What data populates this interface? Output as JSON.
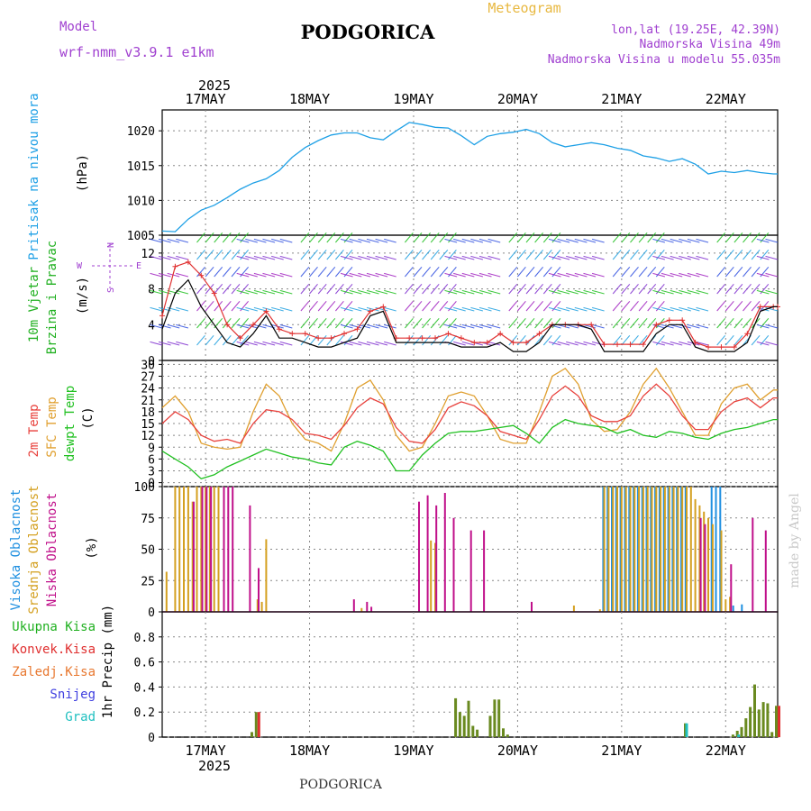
{
  "header": {
    "model_label": "Model",
    "model_name": "wrf-nmm_v3.9.1  e1km",
    "station": "PODGORICA",
    "meteogram": "Meteogram",
    "coords": "lon,lat (19.25E, 42.39N)",
    "elevation": "Nadmorska Visina 49m",
    "model_elevation": "Nadmorska Visina u modelu 55.035m",
    "footer_station": "PODGORICA",
    "watermark": "made by Angel"
  },
  "colors": {
    "pressure": "#1ea0e6",
    "temp": "#e8413c",
    "sfc_temp": "#e0a030",
    "dewpoint": "#20c020",
    "high_cloud": "#2090e0",
    "mid_cloud": "#d4a020",
    "low_cloud": "#c0108a",
    "total_precip": "#6a8a20",
    "conv_precip": "#e03030",
    "freezing": "#e87830",
    "snow": "#4040e0",
    "hail": "#20c0c0",
    "wind_mean": "#000000",
    "wind_gust": "#e03030",
    "purple": "#a040d0",
    "green": "#20b020"
  },
  "chart_data": [
    {
      "type": "line",
      "panel": "pressure",
      "ylabel_lines": [
        "Pritisak na nivou mora",
        "(hPa)"
      ],
      "ylim": [
        1005,
        1023
      ],
      "yticks": [
        1005,
        1010,
        1015,
        1020
      ],
      "x_start": "2025-05-16 14:00",
      "x_end": "2025-05-22 12:00",
      "year_label": "2025",
      "day_labels": [
        "17MAY",
        "18MAY",
        "19MAY",
        "20MAY",
        "21MAY",
        "22MAY"
      ],
      "grid": true,
      "series": [
        {
          "x": [
            0,
            3,
            6,
            9,
            12,
            15,
            18,
            21,
            24,
            27,
            30,
            33,
            36,
            39,
            42,
            45,
            48,
            51,
            54,
            57,
            60,
            63,
            66,
            69,
            72,
            75,
            78,
            81,
            84,
            87,
            90,
            93,
            96,
            99,
            102,
            105,
            108,
            111,
            114,
            117,
            120,
            123,
            126,
            129,
            132,
            135,
            138,
            141,
            142
          ],
          "values": [
            1005.6,
            1005.5,
            1007.3,
            1008.6,
            1009.3,
            1010.4,
            1011.6,
            1012.5,
            1013.1,
            1014.3,
            1016.2,
            1017.6,
            1018.6,
            1019.4,
            1019.7,
            1019.7,
            1019.0,
            1018.7,
            1020.0,
            1021.2,
            1020.9,
            1020.5,
            1020.4,
            1019.3,
            1018.0,
            1019.2,
            1019.6,
            1019.8,
            1020.2,
            1019.6,
            1018.3,
            1017.7,
            1018.0,
            1018.3,
            1018.0,
            1017.5,
            1017.2,
            1016.4,
            1016.1,
            1015.6,
            1016.0,
            1015.2,
            1013.8,
            1014.2,
            1014.0,
            1014.3,
            1014.0,
            1013.8,
            1013.8
          ]
        }
      ]
    },
    {
      "type": "line",
      "panel": "wind",
      "ylabel_lines": [
        "10m Vjetar",
        "Brzina i Pravac",
        "(m/s)"
      ],
      "compass": [
        "N",
        "E",
        "S",
        "W"
      ],
      "ylim": [
        0,
        14
      ],
      "yticks": [
        0,
        4,
        8,
        12
      ],
      "grid": true,
      "series": [
        {
          "name": "mean",
          "x": [
            0,
            3,
            6,
            9,
            12,
            15,
            18,
            21,
            24,
            27,
            30,
            33,
            36,
            39,
            42,
            45,
            48,
            51,
            54,
            57,
            60,
            63,
            66,
            69,
            72,
            75,
            78,
            81,
            84,
            87,
            90,
            93,
            96,
            99,
            102,
            105,
            108,
            111,
            114,
            117,
            120,
            123,
            126,
            129,
            132,
            135,
            138,
            141,
            142
          ],
          "values": [
            3.5,
            7.5,
            9.0,
            6.0,
            4.0,
            2.0,
            1.5,
            3.0,
            5.0,
            2.5,
            2.5,
            2.0,
            1.5,
            1.5,
            2.0,
            2.5,
            5.0,
            5.5,
            2.0,
            2.0,
            2.0,
            2.0,
            2.0,
            1.5,
            1.5,
            1.5,
            2.0,
            1.0,
            1.0,
            2.0,
            4.0,
            4.0,
            4.0,
            3.5,
            1.0,
            1.0,
            1.0,
            1.0,
            3.0,
            4.0,
            4.0,
            1.5,
            1.0,
            1.0,
            1.0,
            2.0,
            5.5,
            6.0,
            6.0
          ]
        },
        {
          "name": "gust",
          "x": [
            0,
            3,
            6,
            9,
            12,
            15,
            18,
            21,
            24,
            27,
            30,
            33,
            36,
            39,
            42,
            45,
            48,
            51,
            54,
            57,
            60,
            63,
            66,
            69,
            72,
            75,
            78,
            81,
            84,
            87,
            90,
            93,
            96,
            99,
            102,
            105,
            108,
            111,
            114,
            117,
            120,
            123,
            126,
            129,
            132,
            135,
            138,
            141,
            142
          ],
          "values": [
            5.0,
            10.5,
            11.0,
            9.5,
            7.5,
            4.0,
            2.5,
            4.0,
            5.5,
            3.5,
            3.0,
            3.0,
            2.5,
            2.5,
            3.0,
            3.5,
            5.5,
            6.0,
            2.5,
            2.5,
            2.5,
            2.5,
            3.0,
            2.5,
            2.0,
            2.0,
            3.0,
            2.0,
            2.0,
            3.0,
            4.0,
            4.0,
            4.0,
            4.0,
            1.8,
            1.8,
            1.8,
            1.8,
            4.0,
            4.5,
            4.5,
            2.0,
            1.5,
            1.5,
            1.5,
            3.0,
            6.0,
            6.0,
            6.0
          ]
        }
      ]
    },
    {
      "type": "line",
      "panel": "temperature",
      "ylabel_lines": [
        "2m Temp",
        "SFC Temp",
        "dewpt Temp",
        "(C)"
      ],
      "ylim": [
        -1,
        31
      ],
      "yticks": [
        0,
        3,
        6,
        9,
        12,
        15,
        18,
        21,
        24,
        27,
        30
      ],
      "grid": true,
      "series": [
        {
          "name": "2m Temp",
          "x": [
            0,
            3,
            6,
            9,
            12,
            15,
            18,
            21,
            24,
            27,
            30,
            33,
            36,
            39,
            42,
            45,
            48,
            51,
            54,
            57,
            60,
            63,
            66,
            69,
            72,
            75,
            78,
            81,
            84,
            87,
            90,
            93,
            96,
            99,
            102,
            105,
            108,
            111,
            114,
            117,
            120,
            123,
            126,
            129,
            132,
            135,
            138,
            141,
            142
          ],
          "values": [
            15.0,
            18.0,
            16.0,
            12.0,
            10.5,
            11.0,
            10.0,
            15.0,
            18.5,
            18.0,
            16.0,
            12.5,
            12.0,
            11.0,
            14.5,
            19.0,
            21.5,
            20.0,
            14.0,
            10.5,
            10.0,
            13.5,
            19.0,
            20.5,
            19.5,
            17.0,
            13.0,
            12.0,
            11.0,
            16.0,
            22.0,
            24.5,
            22.0,
            17.0,
            15.5,
            15.5,
            17.0,
            22.0,
            25.0,
            22.0,
            17.0,
            13.5,
            13.5,
            18.0,
            20.5,
            21.5,
            19.0,
            21.5,
            21.5
          ]
        },
        {
          "name": "SFC Temp",
          "x": [
            0,
            3,
            6,
            9,
            12,
            15,
            18,
            21,
            24,
            27,
            30,
            33,
            36,
            39,
            42,
            45,
            48,
            51,
            54,
            57,
            60,
            63,
            66,
            69,
            72,
            75,
            78,
            81,
            84,
            87,
            90,
            93,
            96,
            99,
            102,
            105,
            108,
            111,
            114,
            117,
            120,
            123,
            126,
            129,
            132,
            135,
            138,
            141,
            142
          ],
          "values": [
            19.0,
            22.0,
            18.0,
            10.0,
            9.0,
            8.5,
            9.0,
            18.0,
            25.0,
            22.0,
            15.0,
            11.0,
            10.0,
            8.0,
            15.0,
            24.0,
            26.0,
            21.0,
            12.0,
            8.0,
            9.0,
            15.0,
            22.0,
            23.0,
            22.0,
            17.0,
            11.0,
            10.0,
            10.0,
            18.0,
            27.0,
            29.0,
            25.0,
            16.0,
            13.0,
            13.5,
            18.0,
            25.0,
            29.0,
            24.0,
            18.0,
            12.0,
            12.0,
            20.0,
            24.0,
            25.0,
            21.0,
            23.5,
            23.5
          ]
        },
        {
          "name": "dewpt Temp",
          "x": [
            0,
            3,
            6,
            9,
            12,
            15,
            18,
            21,
            24,
            27,
            30,
            33,
            36,
            39,
            42,
            45,
            48,
            51,
            54,
            57,
            60,
            63,
            66,
            69,
            72,
            75,
            78,
            81,
            84,
            87,
            90,
            93,
            96,
            99,
            102,
            105,
            108,
            111,
            114,
            117,
            120,
            123,
            126,
            129,
            132,
            135,
            138,
            141,
            142
          ],
          "values": [
            8.0,
            6.0,
            4.0,
            1.0,
            2.0,
            4.0,
            5.5,
            7.0,
            8.5,
            7.5,
            6.5,
            6.0,
            5.0,
            4.5,
            9.0,
            10.5,
            9.5,
            8.0,
            3.0,
            3.0,
            7.0,
            10.0,
            12.5,
            13.0,
            13.0,
            13.5,
            14.0,
            14.5,
            12.5,
            10.0,
            14.0,
            16.0,
            15.0,
            14.5,
            14.0,
            12.5,
            13.5,
            12.0,
            11.5,
            13.0,
            12.5,
            11.5,
            11.0,
            12.5,
            13.5,
            14.0,
            15.0,
            16.0,
            16.0
          ]
        }
      ]
    },
    {
      "type": "bar",
      "panel": "clouds",
      "ylabel_lines": [
        "Visoka Oblacnost",
        "Srednja Oblacnost",
        "Niska Oblacnost",
        "(%)"
      ],
      "ylim": [
        0,
        100
      ],
      "yticks": [
        0,
        25,
        50,
        75,
        100
      ],
      "grid": true,
      "series": [
        {
          "name": "Visoka Oblacnost",
          "x": [
            102,
            103,
            104,
            105,
            106,
            107,
            108,
            109,
            110,
            111,
            112,
            113,
            114,
            115,
            116,
            117,
            118,
            119,
            120,
            121,
            127,
            128,
            129,
            132,
            134
          ],
          "values": [
            100,
            100,
            100,
            100,
            100,
            100,
            100,
            100,
            100,
            100,
            100,
            100,
            100,
            100,
            100,
            100,
            100,
            100,
            100,
            100,
            100,
            100,
            100,
            5,
            6
          ]
        },
        {
          "name": "Srednja Oblacnost",
          "x": [
            1,
            3,
            4,
            5,
            6,
            7,
            8,
            9,
            10,
            11,
            12,
            13,
            22,
            23,
            24,
            46,
            62,
            63,
            95,
            101,
            102,
            103,
            104,
            105,
            106,
            107,
            108,
            109,
            110,
            111,
            112,
            113,
            114,
            115,
            116,
            117,
            118,
            119,
            120,
            121,
            122,
            123,
            124,
            125,
            126,
            127,
            129,
            130,
            131
          ],
          "values": [
            32,
            100,
            100,
            100,
            100,
            88,
            100,
            100,
            100,
            100,
            100,
            100,
            10,
            8,
            58,
            3,
            57,
            55,
            5,
            2,
            100,
            100,
            100,
            100,
            100,
            100,
            100,
            100,
            100,
            100,
            100,
            100,
            100,
            100,
            100,
            100,
            100,
            100,
            100,
            100,
            100,
            90,
            85,
            80,
            75,
            70,
            65,
            10,
            12
          ]
        },
        {
          "name": "Niska Oblacnost",
          "x": [
            7,
            9,
            10,
            11,
            14,
            15,
            16,
            20,
            22,
            44,
            47,
            48,
            59,
            61,
            63,
            65,
            67,
            71,
            74,
            85,
            124,
            125,
            131,
            136,
            139
          ],
          "values": [
            88,
            100,
            100,
            100,
            100,
            100,
            100,
            85,
            35,
            10,
            8,
            4,
            88,
            93,
            85,
            95,
            75,
            65,
            65,
            8,
            75,
            70,
            38,
            75,
            65
          ]
        }
      ]
    },
    {
      "type": "bar",
      "panel": "precip",
      "ylabel_lines": [
        "1hr Precip (mm)"
      ],
      "legend": [
        "Ukupna Kisa",
        "Konvek.Kisa",
        "Zaledj.Kisa",
        "Snijeg",
        "Grad"
      ],
      "ylim": [
        0,
        1.0
      ],
      "yticks": [
        0,
        0.2,
        0.4,
        0.6,
        0.8
      ],
      "grid": true,
      "series": [
        {
          "name": "Ukupna Kisa",
          "x": [
            21,
            22,
            68,
            69,
            70,
            71,
            72,
            73,
            76,
            77,
            78,
            79,
            80,
            121,
            132,
            133,
            134,
            135,
            136,
            137,
            138,
            139,
            140,
            141,
            142
          ],
          "values": [
            0.04,
            0.2,
            0.31,
            0.2,
            0.17,
            0.29,
            0.09,
            0.06,
            0.17,
            0.3,
            0.3,
            0.07,
            0.02,
            0.11,
            0.02,
            0.05,
            0.08,
            0.15,
            0.24,
            0.42,
            0.22,
            0.28,
            0.27,
            0.04,
            0.25
          ]
        },
        {
          "name": "Konvek.Kisa",
          "x": [
            22,
            142
          ],
          "values": [
            0.2,
            0.25
          ]
        },
        {
          "name": "Grad",
          "x": [
            121,
            133
          ],
          "values": [
            0.11,
            0.02
          ]
        }
      ]
    }
  ]
}
